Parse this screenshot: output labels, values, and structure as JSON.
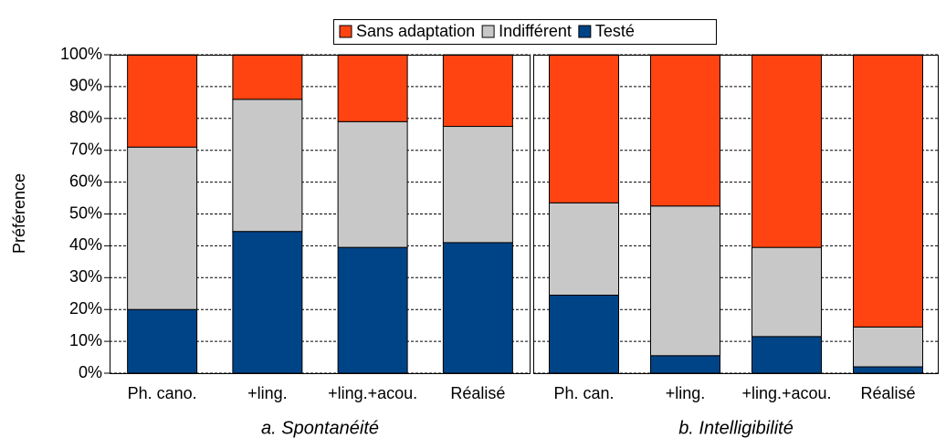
{
  "chart_data": [
    {
      "type": "stacked_bar",
      "subtitle": "a. Spontanéité",
      "y_label": "Préférence",
      "categories": [
        "Ph. cano.",
        "+ling.",
        "+ling.+acou.",
        "Réalisé"
      ],
      "series": [
        {
          "name": "Testé",
          "color": "#004488",
          "values": [
            20,
            44.5,
            39.5,
            41
          ]
        },
        {
          "name": "Indifférent",
          "color": "#c8c8c8",
          "values": [
            51,
            41.5,
            39.5,
            36.5
          ]
        },
        {
          "name": "Sans adaptation",
          "color": "#ff4411",
          "values": [
            29,
            14,
            21,
            22.5
          ]
        }
      ],
      "ylim": [
        0,
        100
      ],
      "yticks": [
        {
          "value": 0,
          "label": "0%"
        },
        {
          "value": 10,
          "label": "10%"
        },
        {
          "value": 20,
          "label": "20%"
        },
        {
          "value": 30,
          "label": "30%"
        },
        {
          "value": 40,
          "label": "40%"
        },
        {
          "value": 50,
          "label": "50%"
        },
        {
          "value": 60,
          "label": "60%"
        },
        {
          "value": 70,
          "label": "70%"
        },
        {
          "value": 80,
          "label": "80%"
        },
        {
          "value": 90,
          "label": "90%"
        },
        {
          "value": 100,
          "label": "100%"
        }
      ],
      "grid": true
    },
    {
      "type": "stacked_bar",
      "subtitle": "b. Intelligibilité",
      "categories": [
        "Ph. can.",
        "+ling.",
        "+ling.+acou.",
        "Réalisé"
      ],
      "series": [
        {
          "color": "#004488",
          "values": [
            24.5,
            5.5,
            11.5,
            2
          ]
        },
        {
          "color": "#c8c8c8",
          "values": [
            29,
            47,
            28,
            12.5
          ]
        },
        {
          "color": "#ff4411",
          "values": [
            46.5,
            47.5,
            60.5,
            85.5
          ]
        }
      ],
      "ylim": [
        0,
        100
      ],
      "grid": true
    }
  ]
}
